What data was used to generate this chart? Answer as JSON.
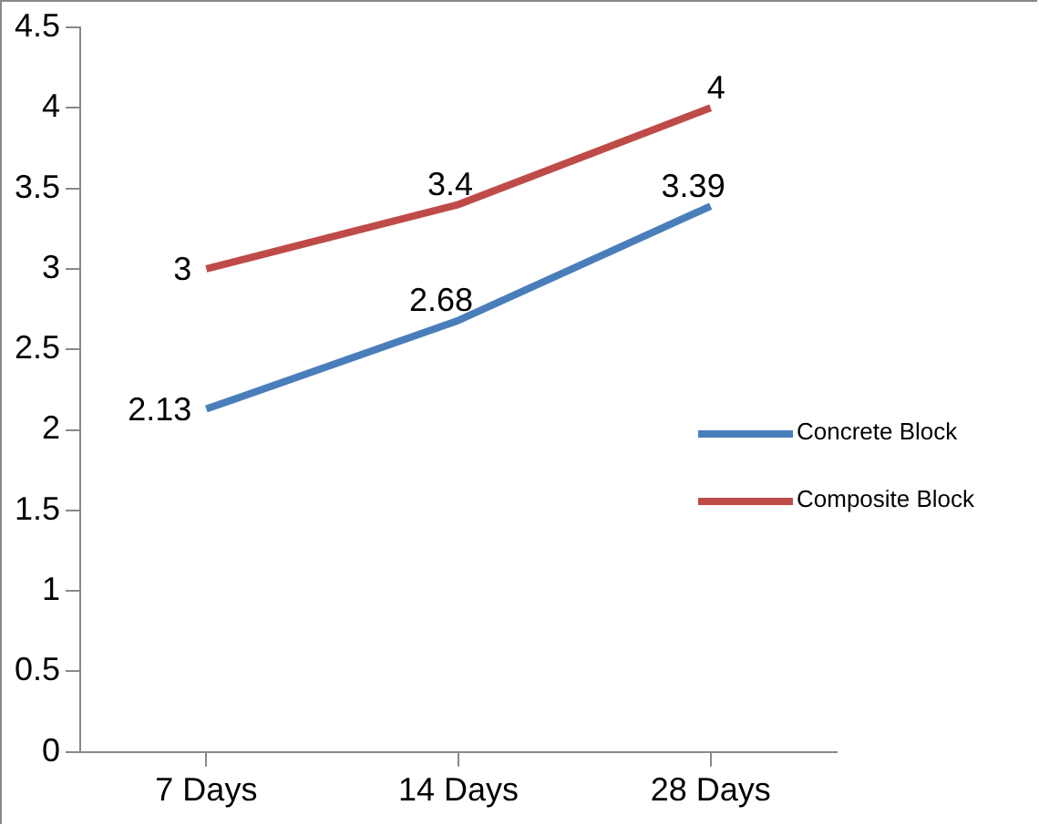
{
  "chart_data": {
    "type": "line",
    "categories": [
      "7 Days",
      "14 Days",
      "28 Days"
    ],
    "series": [
      {
        "name": "Concrete Block",
        "color": "#4a7ebb",
        "values": [
          2.13,
          2.68,
          3.39
        ]
      },
      {
        "name": "Composite Block",
        "color": "#be4b48",
        "values": [
          3,
          3.4,
          4
        ]
      }
    ],
    "ylim": [
      0,
      4.5
    ],
    "yticks": [
      0,
      0.5,
      1,
      1.5,
      2,
      2.5,
      3,
      3.5,
      4,
      4.5
    ],
    "grid": false,
    "legend": "right",
    "data_labels": true,
    "marker": "none",
    "line_style": "solid"
  }
}
